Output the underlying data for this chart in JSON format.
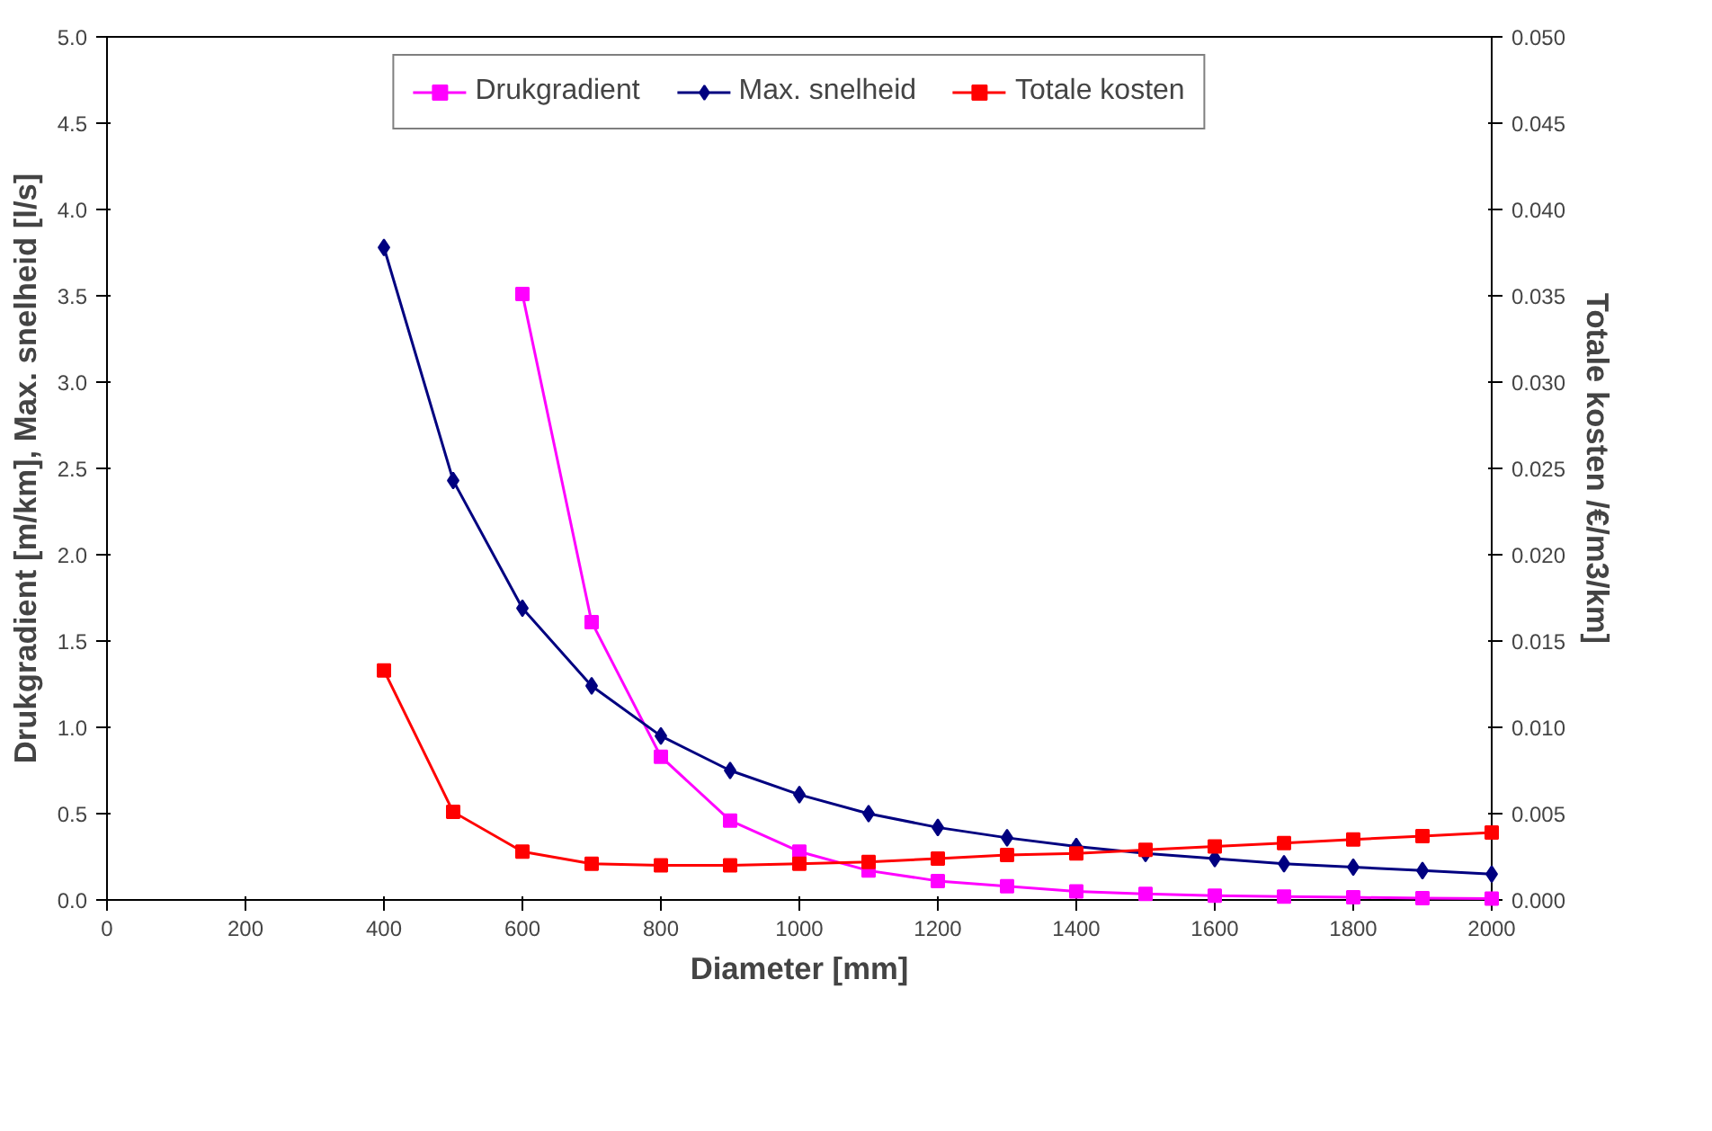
{
  "chart_data": {
    "type": "line",
    "xlabel": "Diameter [mm]",
    "ylabel": "Drukgradient [m/km], Max. snelheid [l/s]",
    "y2label": "Totale kosten /€/m3/km]",
    "x": [
      400,
      500,
      600,
      700,
      800,
      900,
      1000,
      1100,
      1200,
      1300,
      1400,
      1500,
      1600,
      1700,
      1800,
      1900,
      2000
    ],
    "series": [
      {
        "name": "Drukgradient",
        "color": "#ff00ff",
        "marker": "square",
        "values": [
          null,
          null,
          3.51,
          1.61,
          0.83,
          0.46,
          0.28,
          0.17,
          0.11,
          0.08,
          0.05,
          0.035,
          0.025,
          0.02,
          0.015,
          0.01,
          0.008
        ]
      },
      {
        "name": "Max. snelheid",
        "color": "#000080",
        "marker": "diamond",
        "values": [
          3.78,
          2.43,
          1.69,
          1.24,
          0.95,
          0.75,
          0.61,
          0.5,
          0.42,
          0.36,
          0.31,
          0.27,
          0.24,
          0.21,
          0.19,
          0.17,
          0.15
        ]
      },
      {
        "name": "Totale kosten",
        "color": "#ff0000",
        "marker": "square",
        "axis": "y2",
        "values": [
          0.0133,
          0.0051,
          0.0028,
          0.0021,
          0.002,
          0.002,
          0.0021,
          0.0022,
          0.0024,
          0.0026,
          0.0027,
          0.0029,
          0.0031,
          0.0033,
          0.0035,
          0.0037,
          0.0039
        ]
      }
    ],
    "xlim": [
      0,
      2000
    ],
    "xticks": [
      0,
      200,
      400,
      600,
      800,
      1000,
      1200,
      1400,
      1600,
      1800,
      2000
    ],
    "ylim": [
      0,
      5
    ],
    "yticks": [
      {
        "value": 0,
        "label": "0.0"
      },
      {
        "value": 0.5,
        "label": "0.5"
      },
      {
        "value": 1,
        "label": "1.0"
      },
      {
        "value": 1.5,
        "label": "1.5"
      },
      {
        "value": 2,
        "label": "2.0"
      },
      {
        "value": 2.5,
        "label": "2.5"
      },
      {
        "value": 3,
        "label": "3.0"
      },
      {
        "value": 3.5,
        "label": "3.5"
      },
      {
        "value": 4,
        "label": "4.0"
      },
      {
        "value": 4.5,
        "label": "4.5"
      },
      {
        "value": 5,
        "label": "5.0"
      }
    ],
    "y2lim": [
      0,
      0.05
    ],
    "y2ticks": [
      {
        "value": 0,
        "label": "0.000"
      },
      {
        "value": 0.005,
        "label": "0.005"
      },
      {
        "value": 0.01,
        "label": "0.010"
      },
      {
        "value": 0.015,
        "label": "0.015"
      },
      {
        "value": 0.02,
        "label": "0.020"
      },
      {
        "value": 0.025,
        "label": "0.025"
      },
      {
        "value": 0.03,
        "label": "0.030"
      },
      {
        "value": 0.035,
        "label": "0.035"
      },
      {
        "value": 0.04,
        "label": "0.040"
      },
      {
        "value": 0.045,
        "label": "0.045"
      },
      {
        "value": 0.05,
        "label": "0.050"
      }
    ],
    "grid": false,
    "legend": "top",
    "line_style": "solid"
  }
}
